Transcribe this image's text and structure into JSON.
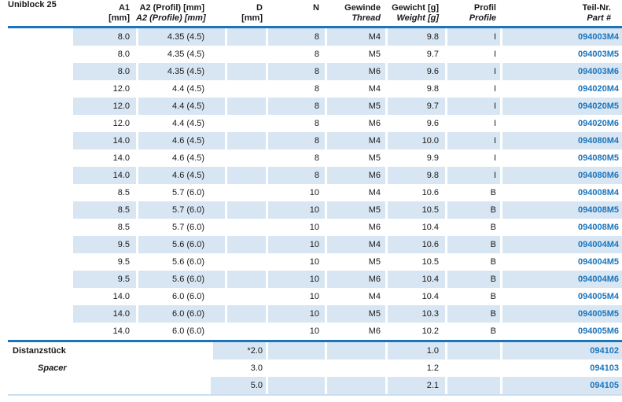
{
  "header": {
    "title": "Uniblock 25",
    "a1_line1": "A1",
    "a1_line2": "[mm]",
    "a2_line1": "A2 (Profil) [mm]",
    "a2_line2": "A2 (Profile) [mm]",
    "d_line1": "D",
    "d_line2": "[mm]",
    "n": "N",
    "thread_line1": "Gewinde",
    "thread_line2": "Thread",
    "weight_line1": "Gewicht [g]",
    "weight_line2": "Weight [g]",
    "profile_line1": "Profil",
    "profile_line2": "Profile",
    "part_line1": "Teil-Nr.",
    "part_line2": "Part #"
  },
  "rows": [
    {
      "a1": "8.0",
      "a2": "4.35 (4.5)",
      "n": "8",
      "thread": "M4",
      "weight": "9.8",
      "profile": "I",
      "part": "094003M4"
    },
    {
      "a1": "8.0",
      "a2": "4.35 (4.5)",
      "n": "8",
      "thread": "M5",
      "weight": "9.7",
      "profile": "I",
      "part": "094003M5"
    },
    {
      "a1": "8.0",
      "a2": "4.35 (4.5)",
      "n": "8",
      "thread": "M6",
      "weight": "9.6",
      "profile": "I",
      "part": "094003M6"
    },
    {
      "a1": "12.0",
      "a2": "4.4 (4.5)",
      "n": "8",
      "thread": "M4",
      "weight": "9.8",
      "profile": "I",
      "part": "094020M4"
    },
    {
      "a1": "12.0",
      "a2": "4.4 (4.5)",
      "n": "8",
      "thread": "M5",
      "weight": "9.7",
      "profile": "I",
      "part": "094020M5"
    },
    {
      "a1": "12.0",
      "a2": "4.4 (4.5)",
      "n": "8",
      "thread": "M6",
      "weight": "9.6",
      "profile": "I",
      "part": "094020M6"
    },
    {
      "a1": "14.0",
      "a2": "4.6 (4.5)",
      "n": "8",
      "thread": "M4",
      "weight": "10.0",
      "profile": "I",
      "part": "094080M4"
    },
    {
      "a1": "14.0",
      "a2": "4.6 (4.5)",
      "n": "8",
      "thread": "M5",
      "weight": "9.9",
      "profile": "I",
      "part": "094080M5"
    },
    {
      "a1": "14.0",
      "a2": "4.6 (4.5)",
      "n": "8",
      "thread": "M6",
      "weight": "9.8",
      "profile": "I",
      "part": "094080M6"
    },
    {
      "a1": "8.5",
      "a2": "5.7 (6.0)",
      "n": "10",
      "thread": "M4",
      "weight": "10.6",
      "profile": "B",
      "part": "094008M4"
    },
    {
      "a1": "8.5",
      "a2": "5.7 (6.0)",
      "n": "10",
      "thread": "M5",
      "weight": "10.5",
      "profile": "B",
      "part": "094008M5"
    },
    {
      "a1": "8.5",
      "a2": "5.7 (6.0)",
      "n": "10",
      "thread": "M6",
      "weight": "10.4",
      "profile": "B",
      "part": "094008M6"
    },
    {
      "a1": "9.5",
      "a2": "5.6 (6.0)",
      "n": "10",
      "thread": "M4",
      "weight": "10.6",
      "profile": "B",
      "part": "094004M4"
    },
    {
      "a1": "9.5",
      "a2": "5.6 (6.0)",
      "n": "10",
      "thread": "M5",
      "weight": "10.5",
      "profile": "B",
      "part": "094004M5"
    },
    {
      "a1": "9.5",
      "a2": "5.6 (6.0)",
      "n": "10",
      "thread": "M6",
      "weight": "10.4",
      "profile": "B",
      "part": "094004M6"
    },
    {
      "a1": "14.0",
      "a2": "6.0 (6.0)",
      "n": "10",
      "thread": "M4",
      "weight": "10.4",
      "profile": "B",
      "part": "094005M4"
    },
    {
      "a1": "14.0",
      "a2": "6.0 (6.0)",
      "n": "10",
      "thread": "M5",
      "weight": "10.3",
      "profile": "B",
      "part": "094005M5"
    },
    {
      "a1": "14.0",
      "a2": "6.0 (6.0)",
      "n": "10",
      "thread": "M6",
      "weight": "10.2",
      "profile": "B",
      "part": "094005M6"
    }
  ],
  "spacer": {
    "label_de": "Distanzstück",
    "label_en": "Spacer",
    "rows": [
      {
        "d": "*2.0",
        "weight": "1.0",
        "part": "094102"
      },
      {
        "d": "3.0",
        "weight": "1.2",
        "part": "094103"
      },
      {
        "d": "5.0",
        "weight": "2.1",
        "part": "094105"
      }
    ]
  },
  "colors": {
    "row_stripe": "#d8e6f3",
    "rule_blue": "#1e74ba",
    "part_number_blue": "#1c75bc",
    "text": "#1a1a1a",
    "bottom_rule": "#c9def0"
  }
}
